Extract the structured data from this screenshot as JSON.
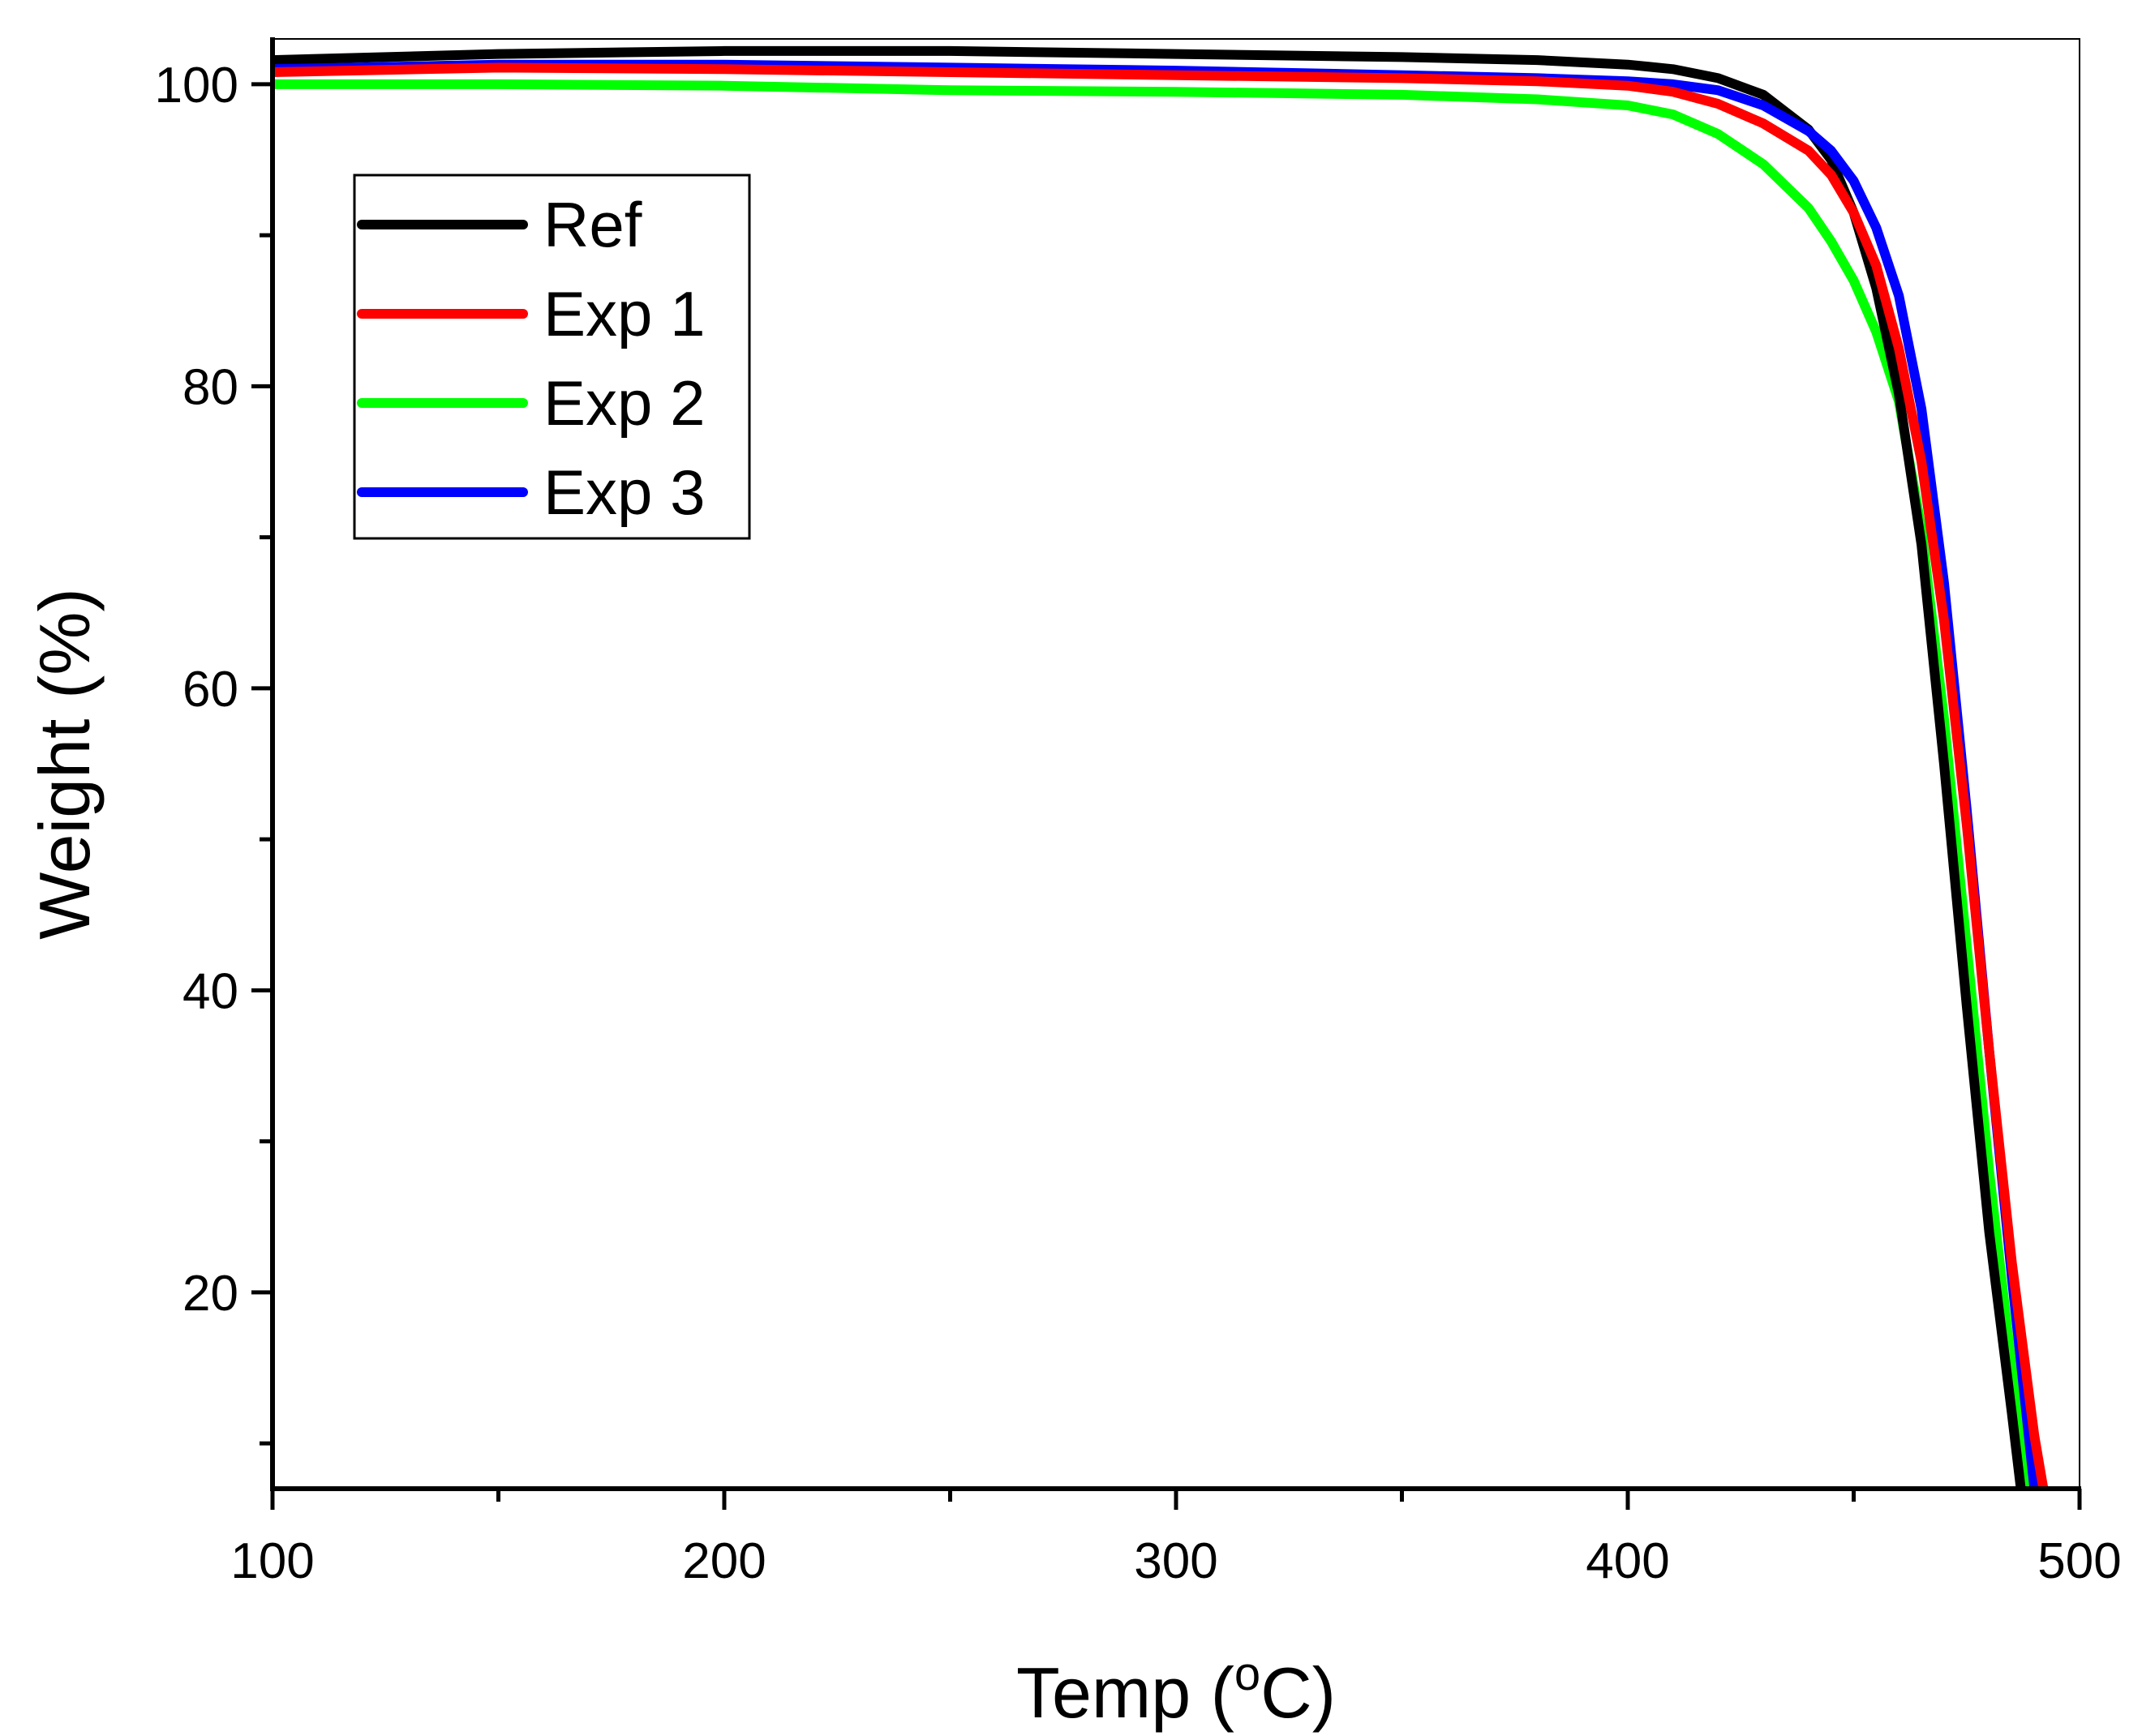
{
  "chart_data": {
    "type": "line",
    "title": "",
    "xlabel": "Temp (",
    "xlabel_sup": "o",
    "xlabel_unit": "C)",
    "ylabel": "Weight (%)",
    "xlim": [
      100,
      500
    ],
    "ylim": [
      7,
      103
    ],
    "xticks": [
      100,
      200,
      300,
      400,
      500
    ],
    "xtick_labels": [
      "100",
      "200",
      "300",
      "400",
      "500"
    ],
    "xminor": [
      150,
      250,
      350,
      450
    ],
    "yticks": [
      20,
      40,
      60,
      80,
      100
    ],
    "ytick_labels": [
      "20",
      "40",
      "60",
      "80",
      "100"
    ],
    "yminor": [
      10,
      30,
      50,
      70,
      90
    ],
    "grid": false,
    "legend_position": "top-left",
    "series": [
      {
        "name": "Ref",
        "color": "#000000",
        "x": [
          100,
          150,
          200,
          250,
          300,
          350,
          380,
          400,
          410,
          420,
          430,
          440,
          445,
          450,
          455,
          460,
          465,
          470,
          475,
          480,
          485,
          487
        ],
        "y": [
          101.6,
          102.0,
          102.2,
          102.2,
          102.0,
          101.8,
          101.6,
          101.3,
          101.0,
          100.4,
          99.3,
          97.0,
          95.0,
          91.5,
          86.5,
          79.5,
          69.5,
          55.0,
          39.0,
          24.0,
          12.0,
          7.0
        ]
      },
      {
        "name": "Exp 1",
        "color": "#ff0000",
        "x": [
          100,
          150,
          200,
          250,
          300,
          350,
          380,
          400,
          410,
          420,
          430,
          440,
          445,
          450,
          455,
          460,
          465,
          470,
          475,
          480,
          485,
          490,
          492
        ],
        "y": [
          100.8,
          101.1,
          101.0,
          100.8,
          100.6,
          100.4,
          100.2,
          99.9,
          99.5,
          98.7,
          97.4,
          95.6,
          94.0,
          91.5,
          88.0,
          82.5,
          75.0,
          64.5,
          51.0,
          36.0,
          22.0,
          10.5,
          7.0
        ]
      },
      {
        "name": "Exp 2",
        "color": "#00ff00",
        "x": [
          100,
          150,
          200,
          250,
          300,
          350,
          380,
          400,
          410,
          420,
          430,
          440,
          445,
          450,
          455,
          460,
          465,
          470,
          475,
          480,
          485,
          488,
          489
        ],
        "y": [
          100.0,
          100.0,
          99.9,
          99.6,
          99.5,
          99.3,
          99.0,
          98.6,
          98.0,
          96.7,
          94.7,
          91.8,
          89.6,
          87.0,
          83.6,
          79.0,
          70.5,
          58.0,
          43.0,
          28.0,
          15.0,
          8.5,
          7.0
        ]
      },
      {
        "name": "Exp 3",
        "color": "#0000ff",
        "x": [
          100,
          150,
          200,
          250,
          300,
          350,
          380,
          400,
          410,
          420,
          430,
          440,
          445,
          450,
          455,
          460,
          465,
          470,
          475,
          480,
          485,
          490
        ],
        "y": [
          101.0,
          101.3,
          101.3,
          101.1,
          100.9,
          100.6,
          100.4,
          100.2,
          100.0,
          99.6,
          98.6,
          96.9,
          95.6,
          93.6,
          90.5,
          86.0,
          78.5,
          67.0,
          52.0,
          36.0,
          21.0,
          7.0
        ]
      }
    ]
  }
}
